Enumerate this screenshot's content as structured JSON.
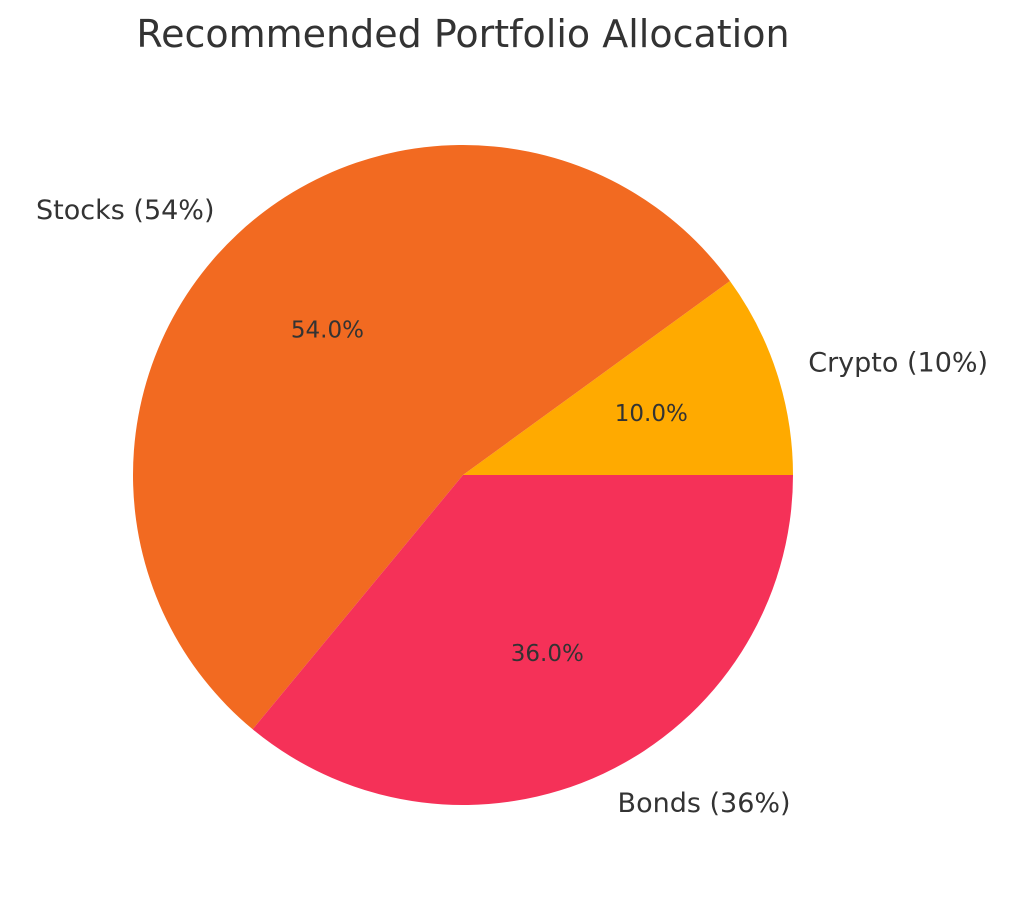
{
  "chart_data": {
    "type": "pie",
    "title": "Recommended Portfolio Allocation",
    "start_angle_deg": 0,
    "direction": "counterclockwise",
    "slices": [
      {
        "category": "Crypto",
        "label": "Crypto (10%)",
        "value": 10,
        "pct_label": "10.0%",
        "color": "#FFAA00"
      },
      {
        "category": "Stocks",
        "label": "Stocks (54%)",
        "value": 54,
        "pct_label": "54.0%",
        "color": "#F26A21"
      },
      {
        "category": "Bonds",
        "label": "Bonds (36%)",
        "value": 36,
        "pct_label": "36.0%",
        "color": "#F53158"
      }
    ],
    "legend": "none",
    "grid": false
  }
}
